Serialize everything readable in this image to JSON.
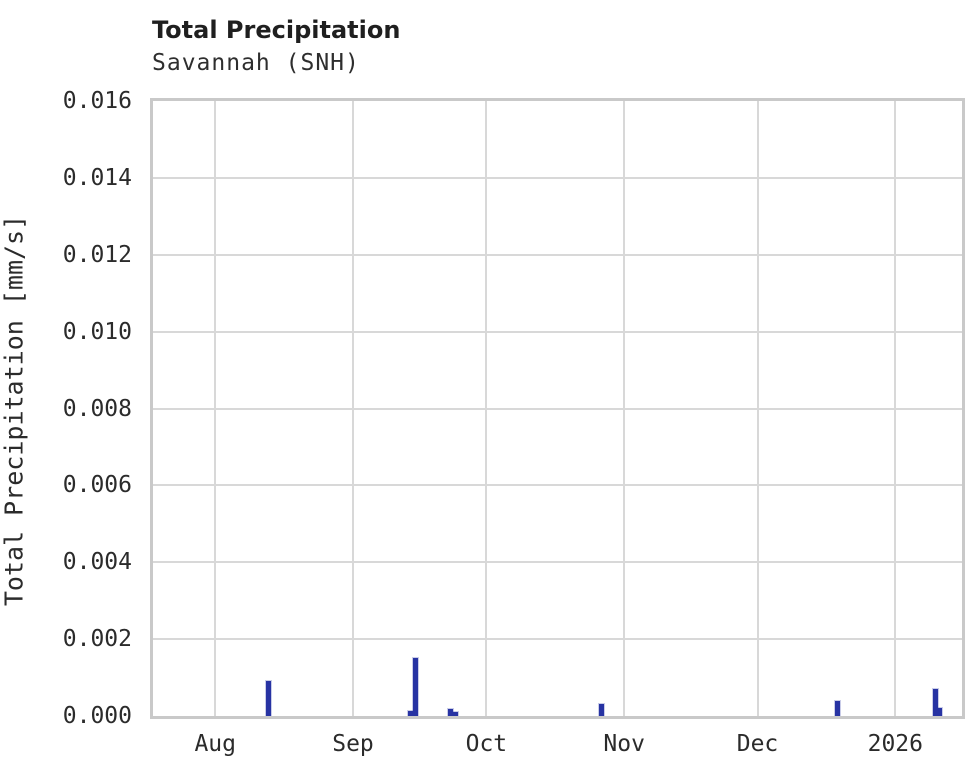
{
  "chart_data": {
    "type": "bar",
    "title": "Total Precipitation",
    "subtitle": "Savannah (SNH)",
    "xlabel": "",
    "ylabel": "Total Precipitation [mm/s]",
    "ylim": [
      0,
      0.016
    ],
    "y_ticks": [
      {
        "value": 0.0,
        "label": "0.000"
      },
      {
        "value": 0.002,
        "label": "0.002"
      },
      {
        "value": 0.004,
        "label": "0.004"
      },
      {
        "value": 0.006,
        "label": "0.006"
      },
      {
        "value": 0.008,
        "label": "0.008"
      },
      {
        "value": 0.01,
        "label": "0.010"
      },
      {
        "value": 0.012,
        "label": "0.012"
      },
      {
        "value": 0.014,
        "label": "0.014"
      },
      {
        "value": 0.016,
        "label": "0.016"
      }
    ],
    "x_domain": [
      "2025-07-18",
      "2026-01-16"
    ],
    "x_ticks": [
      {
        "date": "2025-08-01",
        "label": "Aug"
      },
      {
        "date": "2025-09-01",
        "label": "Sep"
      },
      {
        "date": "2025-10-01",
        "label": "Oct"
      },
      {
        "date": "2025-11-01",
        "label": "Nov"
      },
      {
        "date": "2025-12-01",
        "label": "Dec"
      },
      {
        "date": "2026-01-01",
        "label": "2026"
      }
    ],
    "grid": true,
    "legend": "none",
    "colors": {
      "bar": "#2733a3",
      "grid": "#d8d8d8",
      "plot_border": "#c9c9c9",
      "title_text": "#1f1f1f",
      "tick_text": "#2b2b2b"
    },
    "series": [
      {
        "name": "Total Precipitation",
        "points": [
          {
            "date": "2025-08-13",
            "value": 0.0009
          },
          {
            "date": "2025-09-14",
            "value": 0.00012
          },
          {
            "date": "2025-09-15",
            "value": 0.0015
          },
          {
            "date": "2025-09-23",
            "value": 0.00018
          },
          {
            "date": "2025-09-24",
            "value": 0.0001
          },
          {
            "date": "2025-10-27",
            "value": 0.0003
          },
          {
            "date": "2025-12-19",
            "value": 0.0004
          },
          {
            "date": "2026-01-10",
            "value": 0.0007
          },
          {
            "date": "2026-01-11",
            "value": 0.0002
          }
        ]
      }
    ]
  }
}
